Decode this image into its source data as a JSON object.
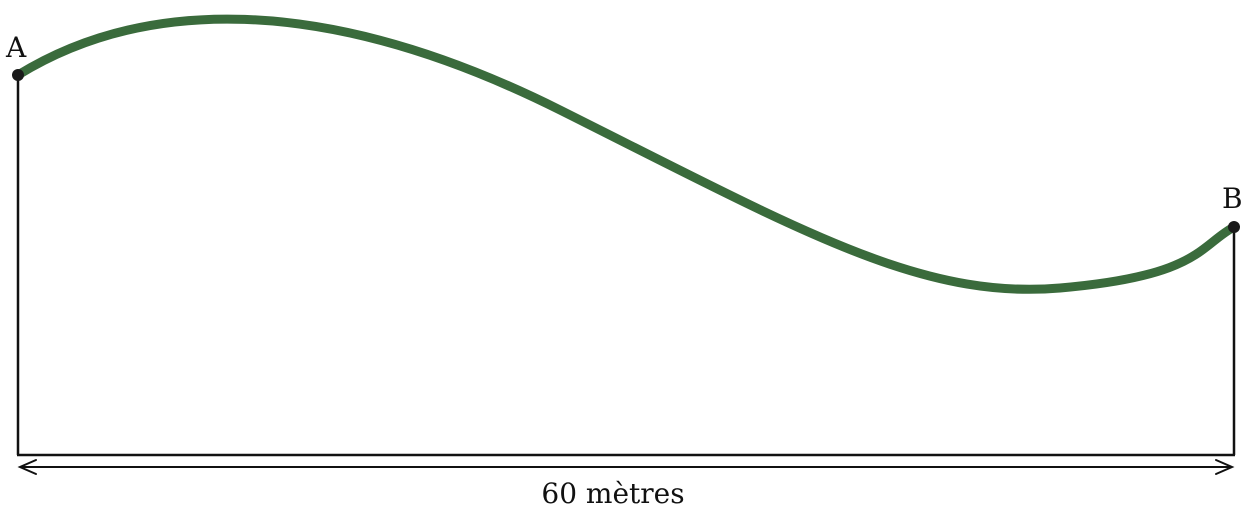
{
  "points": {
    "a_label": "A",
    "b_label": "B"
  },
  "dimension": {
    "label": "60 mètres"
  },
  "colors": {
    "curve": "#3a6b3c",
    "ink": "#111111"
  }
}
